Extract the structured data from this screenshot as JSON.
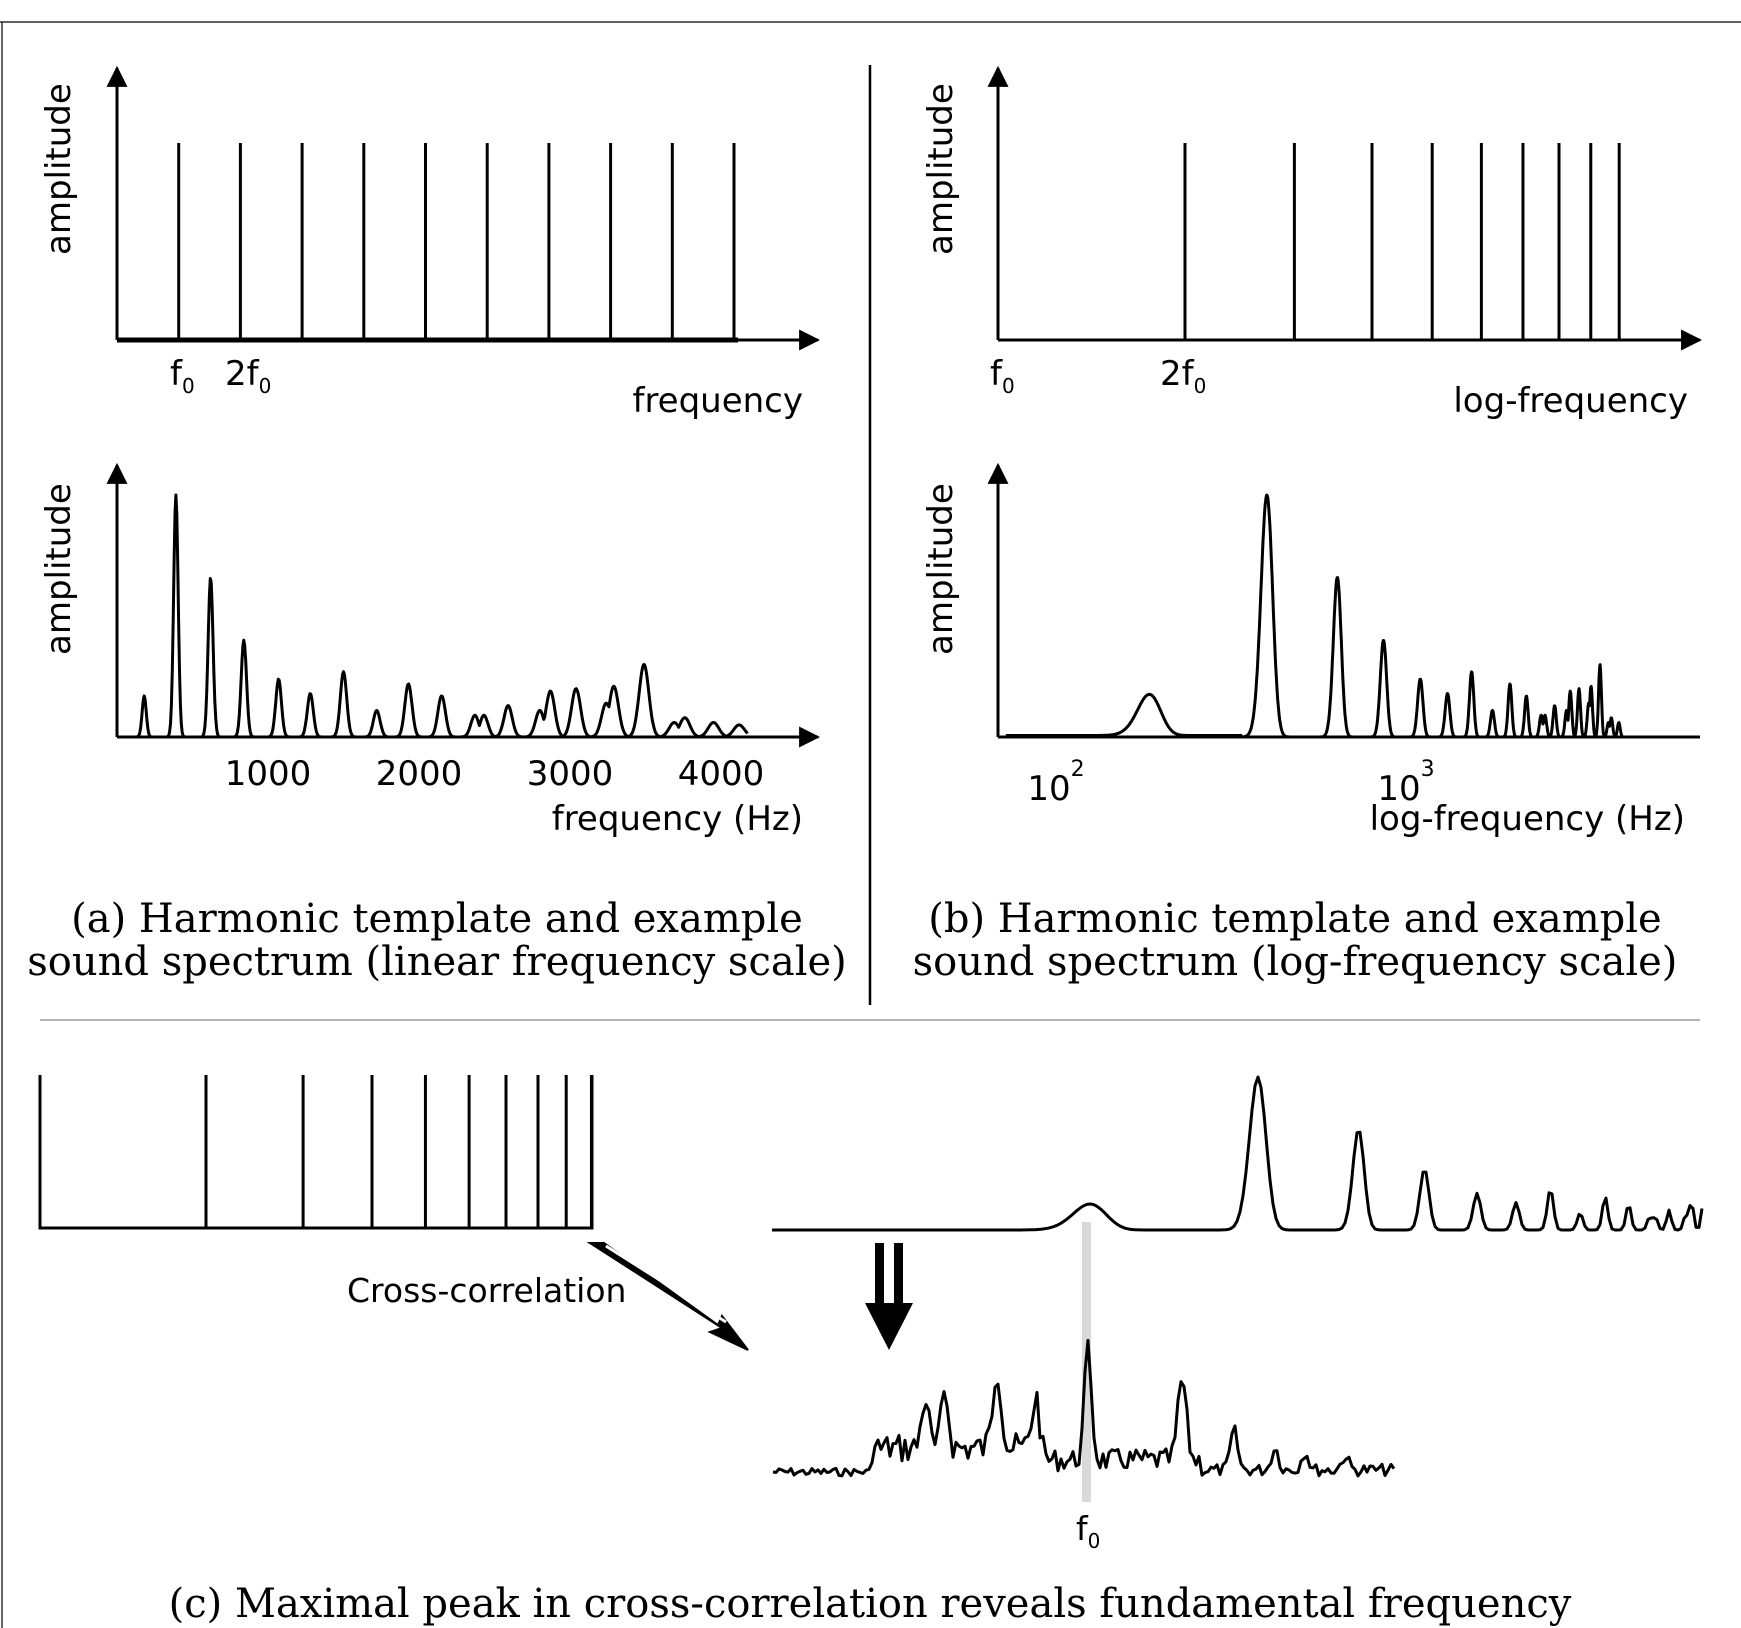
{
  "panel_a": {
    "template": {
      "ylabel": "amplitude",
      "xlabel": "frequency",
      "tick_f0": "f",
      "tick_2f0": "2f",
      "subscript": "0",
      "harmonics": [
        1,
        2,
        3,
        4,
        5,
        6,
        7,
        8,
        9,
        10
      ]
    },
    "spectrum": {
      "ylabel": "amplitude",
      "xlabel": "frequency (Hz)",
      "ticks": [
        {
          "value": 1000,
          "label": "1000"
        },
        {
          "value": 2000,
          "label": "2000"
        },
        {
          "value": 3000,
          "label": "3000"
        },
        {
          "value": 4000,
          "label": "4000"
        }
      ],
      "xlim": [
        0,
        4700
      ],
      "peaks_hz": [
        {
          "f": 180,
          "a": 0.17
        },
        {
          "f": 390,
          "a": 1.0
        },
        {
          "f": 620,
          "a": 0.66
        },
        {
          "f": 840,
          "a": 0.4
        },
        {
          "f": 1070,
          "a": 0.24
        },
        {
          "f": 1280,
          "a": 0.18
        },
        {
          "f": 1500,
          "a": 0.27
        },
        {
          "f": 1720,
          "a": 0.11
        },
        {
          "f": 1930,
          "a": 0.22
        },
        {
          "f": 2150,
          "a": 0.17
        },
        {
          "f": 2370,
          "a": 0.09
        },
        {
          "f": 2430,
          "a": 0.09
        },
        {
          "f": 2590,
          "a": 0.13
        },
        {
          "f": 2800,
          "a": 0.11
        },
        {
          "f": 2870,
          "a": 0.19
        },
        {
          "f": 3040,
          "a": 0.2
        },
        {
          "f": 3240,
          "a": 0.14
        },
        {
          "f": 3290,
          "a": 0.21
        },
        {
          "f": 3490,
          "a": 0.3
        },
        {
          "f": 3690,
          "a": 0.06
        },
        {
          "f": 3760,
          "a": 0.08
        },
        {
          "f": 3950,
          "a": 0.06
        },
        {
          "f": 4120,
          "a": 0.05
        }
      ]
    },
    "caption_line1": "(a) Harmonic template and example",
    "caption_line2": "sound spectrum (linear frequency scale)"
  },
  "panel_b": {
    "template": {
      "ylabel": "amplitude",
      "xlabel": "log-frequency",
      "tick_f0": "f",
      "tick_2f0": "2f",
      "subscript": "0",
      "harmonics": [
        2,
        3,
        4,
        5,
        6,
        7,
        8,
        9,
        10
      ]
    },
    "spectrum": {
      "ylabel": "amplitude",
      "xlabel": "log-frequency (Hz)",
      "ticks": [
        {
          "value": 100,
          "base": "10",
          "exp": "2"
        },
        {
          "value": 1000,
          "base": "10",
          "exp": "3"
        }
      ],
      "xlim": [
        60,
        6000
      ],
      "peaks_hz": [
        {
          "f": 180,
          "a": 0.17
        },
        {
          "f": 390,
          "a": 1.0
        },
        {
          "f": 620,
          "a": 0.66
        },
        {
          "f": 840,
          "a": 0.4
        },
        {
          "f": 1070,
          "a": 0.24
        },
        {
          "f": 1280,
          "a": 0.18
        },
        {
          "f": 1500,
          "a": 0.27
        },
        {
          "f": 1720,
          "a": 0.11
        },
        {
          "f": 1930,
          "a": 0.22
        },
        {
          "f": 2150,
          "a": 0.17
        },
        {
          "f": 2370,
          "a": 0.09
        },
        {
          "f": 2430,
          "a": 0.09
        },
        {
          "f": 2590,
          "a": 0.13
        },
        {
          "f": 2800,
          "a": 0.11
        },
        {
          "f": 2870,
          "a": 0.19
        },
        {
          "f": 3040,
          "a": 0.2
        },
        {
          "f": 3240,
          "a": 0.14
        },
        {
          "f": 3290,
          "a": 0.21
        },
        {
          "f": 3490,
          "a": 0.3
        },
        {
          "f": 3690,
          "a": 0.06
        },
        {
          "f": 3760,
          "a": 0.08
        },
        {
          "f": 3950,
          "a": 0.06
        }
      ]
    },
    "caption_line1": "(b) Harmonic template and example",
    "caption_line2": "sound spectrum (log-frequency scale)"
  },
  "panel_c": {
    "arrow_label": "Cross-correlation",
    "f0_label": "f",
    "subscript": "0",
    "caption": "(c) Maximal peak in cross-correlation reveals fundamental frequency"
  }
}
